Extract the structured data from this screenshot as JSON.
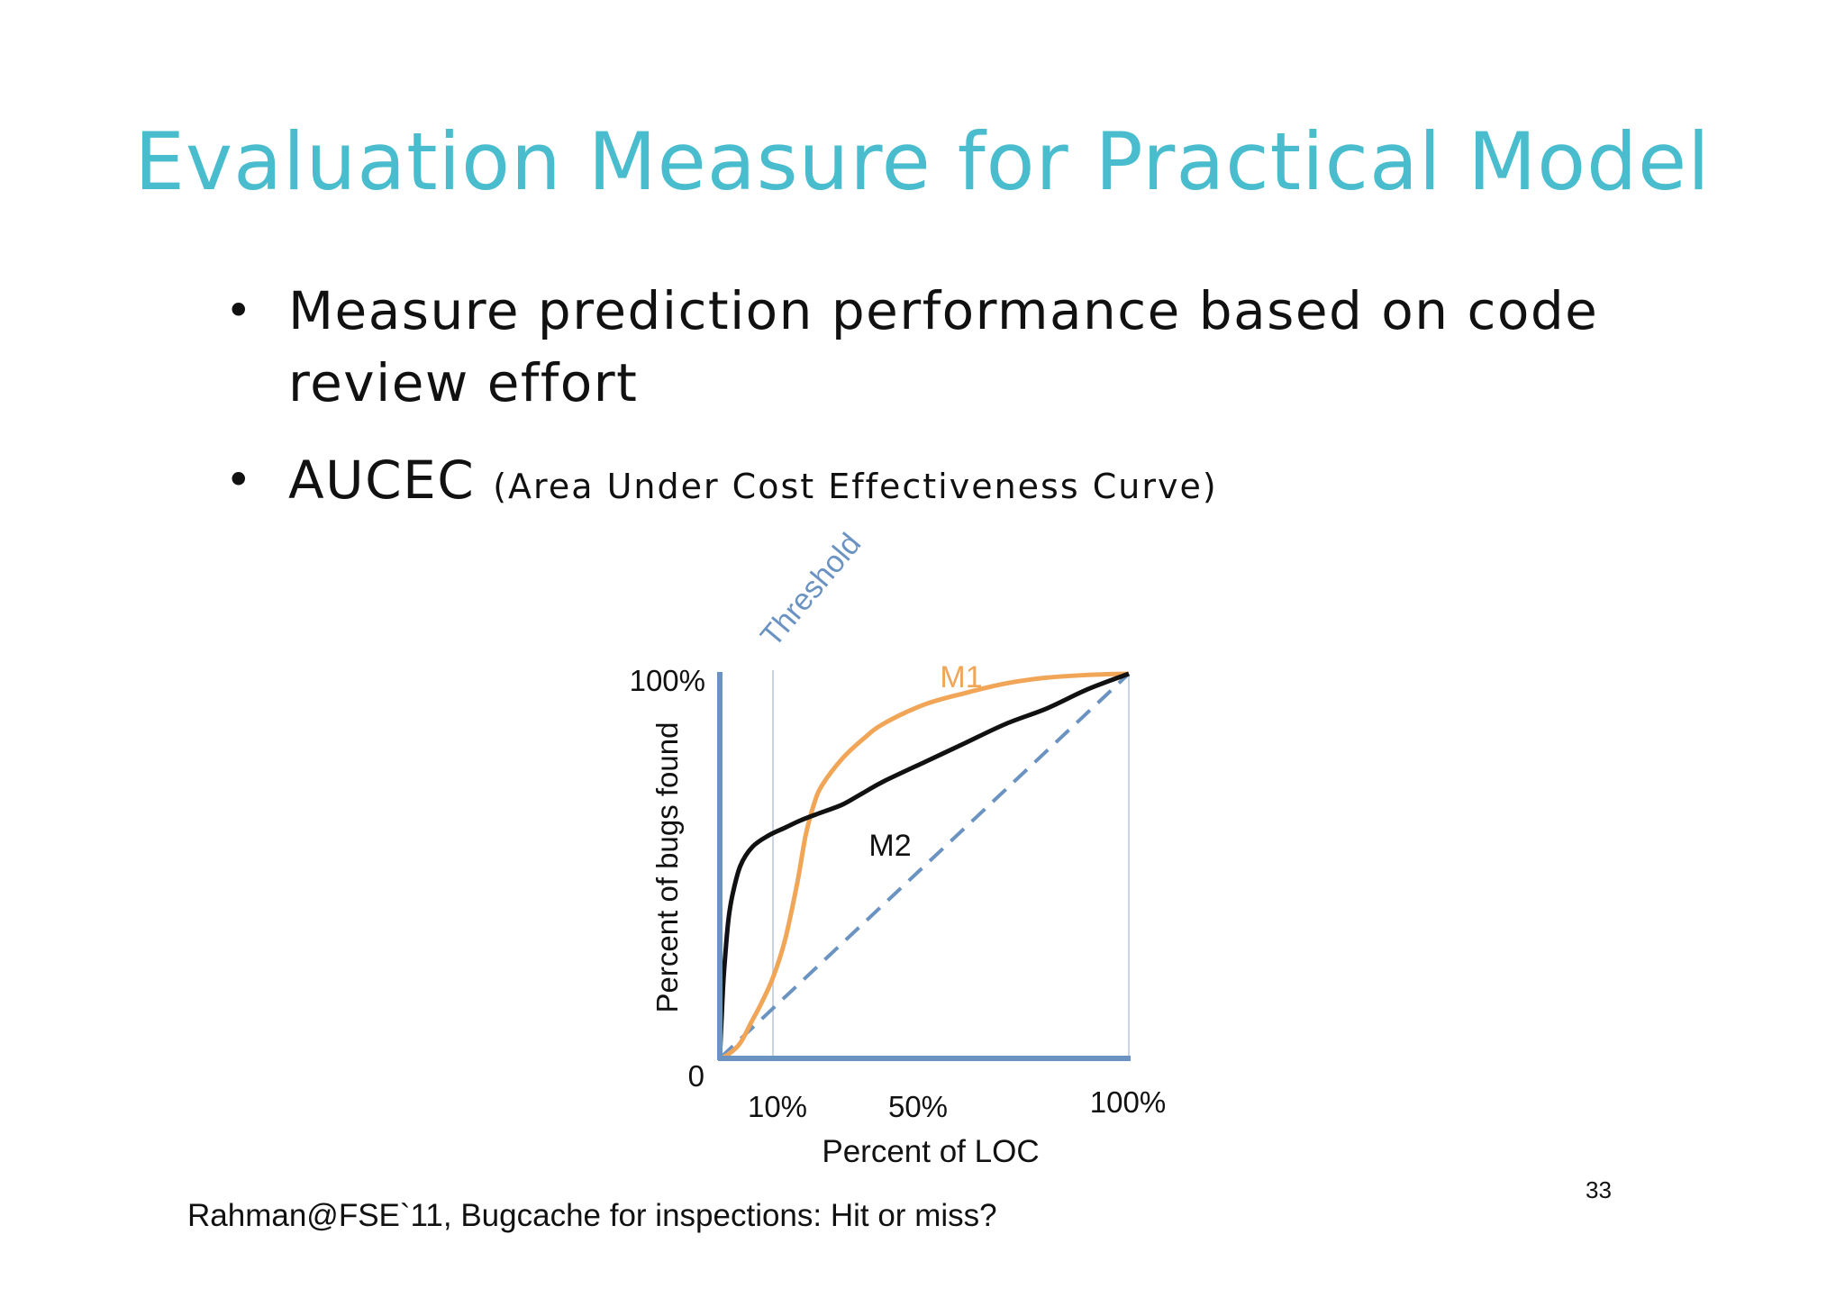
{
  "slide": {
    "title": "Evaluation Measure for Practical Model",
    "bullets": [
      {
        "marker": "•",
        "text": "Measure prediction performance based on code review effort"
      },
      {
        "marker": "•",
        "text": "AUCEC",
        "aside": "(Area Under Cost Effectiveness Curve)"
      }
    ],
    "citation": "Rahman@FSE`11, Bugcache for inspections: Hit or miss?",
    "page_number": "33"
  },
  "chart_data": {
    "type": "line",
    "xlabel": "Percent of LOC",
    "ylabel": "Percent of bugs found",
    "x_ticks": [
      "10%",
      "50%",
      "100%"
    ],
    "y_ticks": [
      "0",
      "100%"
    ],
    "xlim": [
      0,
      100
    ],
    "ylim": [
      0,
      100
    ],
    "threshold": {
      "label": "Threshold",
      "x": 13
    },
    "colors": {
      "axis": "#6B93C2",
      "threshold": "#6B93C2",
      "m1": "#F0A557",
      "m2": "#111111",
      "random": "#6B93C2"
    },
    "series": [
      {
        "name": "M1",
        "x": [
          0,
          2,
          5,
          8,
          10,
          13,
          16,
          19,
          21,
          23,
          25,
          30,
          35,
          40,
          50,
          60,
          70,
          80,
          90,
          100
        ],
        "y": [
          0,
          1,
          4,
          10,
          14,
          21,
          31,
          46,
          58,
          66,
          71,
          78,
          83,
          87,
          92,
          95,
          97.5,
          99,
          99.7,
          100
        ]
      },
      {
        "name": "M2",
        "x": [
          0,
          0.5,
          1,
          2,
          3,
          5,
          8,
          12,
          16,
          20,
          25,
          30,
          35,
          40,
          50,
          60,
          70,
          80,
          90,
          100
        ],
        "y": [
          0,
          12,
          22,
          35,
          42,
          50,
          55,
          58,
          60,
          62,
          64,
          66,
          69,
          72,
          77,
          82,
          87,
          91,
          96,
          100
        ]
      },
      {
        "name": "",
        "dashed": true,
        "x": [
          0,
          100
        ],
        "y": [
          0,
          100
        ]
      }
    ]
  }
}
